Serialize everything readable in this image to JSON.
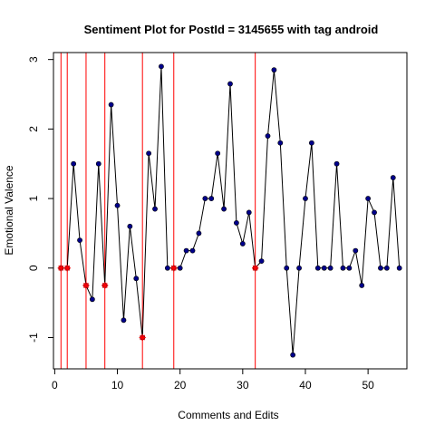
{
  "chart_data": {
    "type": "line",
    "title": "Sentiment Plot for PostId =  3145655  with tag  android",
    "xlabel": "Comments and Edits",
    "ylabel": "Emotional Valence",
    "xlim": [
      -0.2,
      56.2
    ],
    "ylim": [
      -1.45,
      3.1
    ],
    "x_ticks": [
      0,
      10,
      20,
      30,
      40,
      50
    ],
    "y_ticks": [
      -1,
      0,
      1,
      2,
      3
    ],
    "grid": false,
    "line_color": "#000000",
    "point_color": "#00008B",
    "edit_marker_color": "#FF0000",
    "vline_color": "#FF0000",
    "series": [
      {
        "x": [
          1,
          2,
          3,
          4,
          5,
          6,
          7,
          8,
          9,
          10,
          11,
          12,
          13,
          14,
          15,
          16,
          17,
          18,
          19,
          20,
          21,
          22,
          23,
          24,
          25,
          26,
          27,
          28,
          29,
          30,
          31,
          32,
          33,
          34,
          35,
          36,
          37,
          38,
          39,
          40,
          41,
          42,
          43,
          44,
          45,
          46,
          47,
          48,
          49,
          50,
          51,
          52,
          53,
          54,
          55
        ],
        "y": [
          0,
          0,
          1.5,
          0.4,
          -0.25,
          -0.45,
          1.5,
          -0.25,
          2.35,
          0.9,
          -0.75,
          0.6,
          -0.15,
          -1,
          1.65,
          0.85,
          2.9,
          0,
          0,
          0,
          0.25,
          0.25,
          0.5,
          1,
          1,
          1.65,
          0.85,
          2.65,
          0.65,
          0.35,
          0.8,
          0,
          0.1,
          1.9,
          2.85,
          1.8,
          0,
          -1.25,
          0,
          1,
          1.8,
          0,
          0,
          0,
          1.5,
          0,
          0,
          0.25,
          -0.25,
          1,
          0.8,
          0,
          0,
          1.3,
          0
        ]
      }
    ],
    "edit_points": [
      {
        "x": 1,
        "y": 0
      },
      {
        "x": 2,
        "y": 0
      },
      {
        "x": 5,
        "y": -0.25
      },
      {
        "x": 8,
        "y": -0.25
      },
      {
        "x": 14,
        "y": -1
      },
      {
        "x": 19,
        "y": 0
      },
      {
        "x": 32,
        "y": 0
      }
    ],
    "vlines": [
      1,
      2,
      5,
      8,
      14,
      19,
      32
    ]
  }
}
